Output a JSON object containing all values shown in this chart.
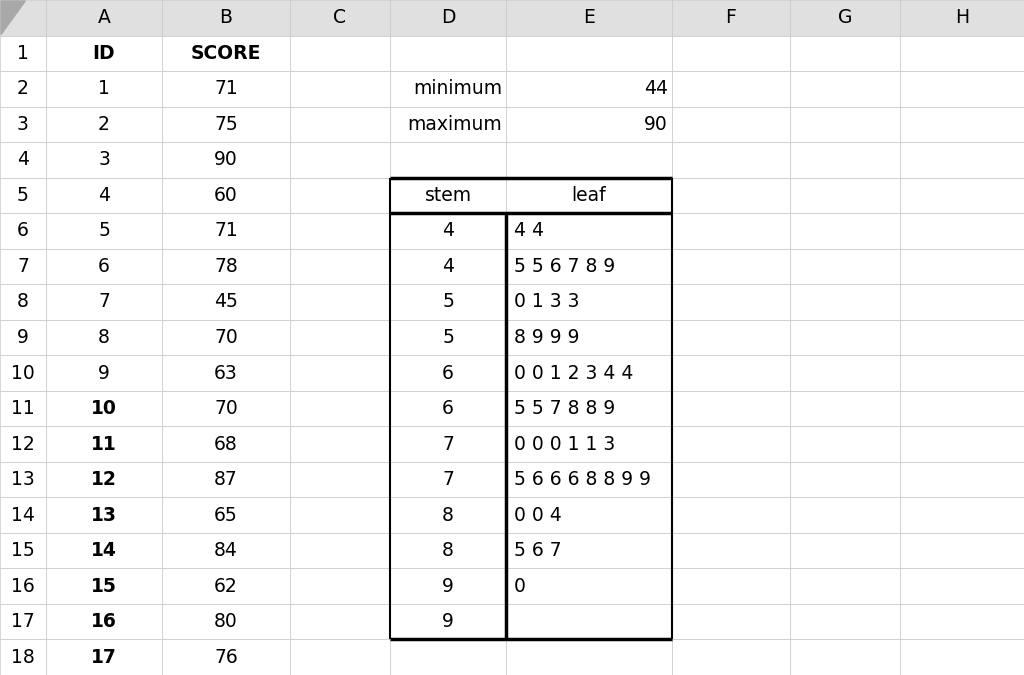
{
  "background_color": "#ffffff",
  "grid_color": "#c8c8c8",
  "header_bg": "#e0e0e0",
  "col_labels": [
    "",
    "A",
    "B",
    "C",
    "D",
    "E",
    "F",
    "G",
    "H"
  ],
  "col_a": [
    "ID",
    "1",
    "2",
    "3",
    "4",
    "5",
    "6",
    "7",
    "8",
    "9",
    "10",
    "11",
    "12",
    "13",
    "14",
    "15",
    "16",
    "17"
  ],
  "col_b": [
    "SCORE",
    "71",
    "75",
    "90",
    "60",
    "71",
    "78",
    "45",
    "70",
    "63",
    "70",
    "68",
    "87",
    "65",
    "84",
    "62",
    "80",
    "76"
  ],
  "col_d": {
    "1": "",
    "2": "minimum",
    "3": "maximum",
    "4": "",
    "5": "stem",
    "6": "4",
    "7": "4",
    "8": "5",
    "9": "5",
    "10": "6",
    "11": "6",
    "12": "7",
    "13": "7",
    "14": "8",
    "15": "8",
    "16": "9",
    "17": "9",
    "18": ""
  },
  "col_e": {
    "1": "",
    "2": "44",
    "3": "90",
    "4": "",
    "5": "leaf",
    "6": "4 4",
    "7": "5 5 6 7 8 9",
    "8": "0 1 3 3",
    "9": "8 9 9 9",
    "10": "0 0 1 2 3 4 4",
    "11": "5 5 7 8 8 9",
    "12": "0 0 0 1 1 3",
    "13": "5 6 6 6 8 8 9 9",
    "14": "0 0 4",
    "15": "5 6 7",
    "16": "0",
    "17": "",
    "18": ""
  },
  "n_rows": 19,
  "n_cols": 9,
  "fig_width": 10.24,
  "fig_height": 6.75,
  "dpi": 100,
  "font_size": 13.5,
  "header_font_size": 13.5
}
